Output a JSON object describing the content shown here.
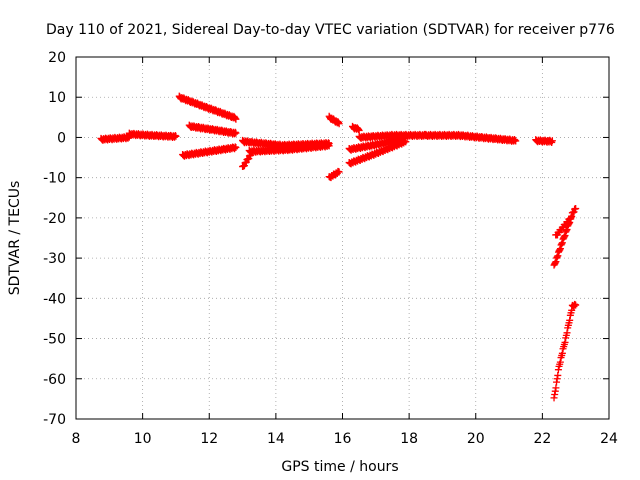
{
  "chart_data": {
    "type": "scatter",
    "title": "Day 110 of 2021, Sidereal Day-to-day VTEC variation (SDTVAR) for receiver p776",
    "xlabel": "GPS time / hours",
    "ylabel": "SDTVAR / TECUs",
    "xlim": [
      8,
      24
    ],
    "ylim": [
      -70,
      20
    ],
    "xticks": [
      8,
      10,
      12,
      14,
      16,
      18,
      20,
      22,
      24
    ],
    "yticks": [
      -70,
      -60,
      -50,
      -40,
      -30,
      -20,
      -10,
      0,
      10,
      20
    ],
    "grid": true,
    "marker": "plus",
    "color": "#ff0000",
    "series": [
      {
        "points": [
          [
            8.75,
            -0.5
          ],
          [
            9.6,
            0.0
          ]
        ]
      },
      {
        "points": [
          [
            9.6,
            0.8
          ],
          [
            10.3,
            0.5
          ],
          [
            11.0,
            0.2
          ]
        ]
      },
      {
        "points": [
          [
            11.1,
            10.0
          ],
          [
            11.9,
            7.5
          ],
          [
            12.8,
            4.8
          ]
        ]
      },
      {
        "points": [
          [
            11.4,
            2.8
          ],
          [
            12.2,
            1.8
          ],
          [
            12.8,
            1.0
          ]
        ]
      },
      {
        "points": [
          [
            11.2,
            -4.5
          ],
          [
            12.0,
            -3.5
          ],
          [
            12.8,
            -2.5
          ]
        ]
      },
      {
        "points": [
          [
            13.0,
            -7.5
          ],
          [
            13.15,
            -5.5
          ],
          [
            13.3,
            -3.5
          ]
        ]
      },
      {
        "points": [
          [
            13.0,
            -1.0
          ],
          [
            14.2,
            -2.0
          ],
          [
            15.6,
            -1.5
          ]
        ]
      },
      {
        "points": [
          [
            13.2,
            -3.5
          ],
          [
            14.4,
            -3.0
          ],
          [
            15.6,
            -2.0
          ]
        ]
      },
      {
        "points": [
          [
            15.6,
            5.0
          ],
          [
            15.9,
            3.5
          ]
        ]
      },
      {
        "points": [
          [
            16.3,
            2.5
          ],
          [
            16.5,
            2.0
          ]
        ]
      },
      {
        "points": [
          [
            15.6,
            -10.0
          ],
          [
            15.9,
            -8.5
          ]
        ]
      },
      {
        "points": [
          [
            16.2,
            -6.5
          ],
          [
            17.0,
            -4.0
          ],
          [
            17.9,
            -1.0
          ]
        ]
      },
      {
        "points": [
          [
            16.2,
            -3.0
          ],
          [
            17.2,
            -1.5
          ],
          [
            17.9,
            0.0
          ]
        ]
      },
      {
        "points": [
          [
            16.5,
            0.0
          ],
          [
            17.5,
            0.5
          ],
          [
            18.5,
            0.5
          ]
        ]
      },
      {
        "points": [
          [
            18.5,
            0.5
          ],
          [
            19.5,
            0.5
          ],
          [
            21.2,
            -0.8
          ]
        ]
      },
      {
        "points": [
          [
            21.8,
            -0.8
          ],
          [
            22.3,
            -1.0
          ]
        ]
      },
      {
        "points": [
          [
            22.35,
            -32.0
          ],
          [
            22.6,
            -26.0
          ],
          [
            22.9,
            -19.0
          ],
          [
            23.0,
            -17.5
          ]
        ]
      },
      {
        "points": [
          [
            22.4,
            -24.5
          ],
          [
            22.6,
            -22.5
          ],
          [
            22.85,
            -20.0
          ]
        ]
      },
      {
        "points": [
          [
            22.35,
            -65.0
          ],
          [
            22.5,
            -57.0
          ],
          [
            22.7,
            -50.0
          ],
          [
            22.9,
            -42.0
          ],
          [
            23.0,
            -41.5
          ]
        ]
      }
    ]
  }
}
